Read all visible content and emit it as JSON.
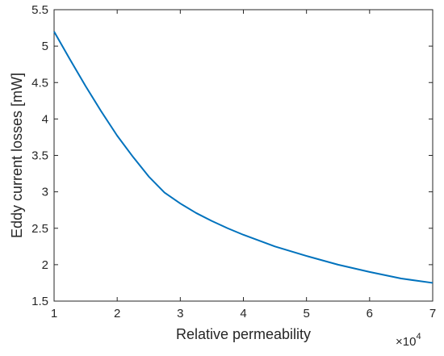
{
  "chart_data": {
    "type": "line",
    "xlabel": "Relative permeability",
    "ylabel": "Eddy current losses [mW]",
    "x_multiplier": "×10",
    "x_multiplier_exp": "4",
    "xlim": [
      1,
      7
    ],
    "ylim": [
      1.5,
      5.5
    ],
    "xticks": [
      1,
      2,
      3,
      4,
      5,
      6,
      7
    ],
    "xtick_labels": [
      "1",
      "2",
      "3",
      "4",
      "5",
      "6",
      "7"
    ],
    "yticks": [
      1.5,
      2,
      2.5,
      3,
      3.5,
      4,
      4.5,
      5,
      5.5
    ],
    "ytick_labels": [
      "1.5",
      "2",
      "2.5",
      "3",
      "3.5",
      "4",
      "4.5",
      "5",
      "5.5"
    ],
    "grid": false,
    "series": [
      {
        "color": "#0072bd",
        "x": [
          1.0,
          1.25,
          1.5,
          1.75,
          2.0,
          2.25,
          2.5,
          2.75,
          3.0,
          3.25,
          3.5,
          3.75,
          4.0,
          4.5,
          5.0,
          5.5,
          6.0,
          6.5,
          7.0
        ],
        "y": [
          5.2,
          4.82,
          4.45,
          4.1,
          3.77,
          3.48,
          3.21,
          2.99,
          2.84,
          2.71,
          2.6,
          2.5,
          2.41,
          2.25,
          2.12,
          2.0,
          1.9,
          1.81,
          1.75
        ]
      }
    ]
  }
}
